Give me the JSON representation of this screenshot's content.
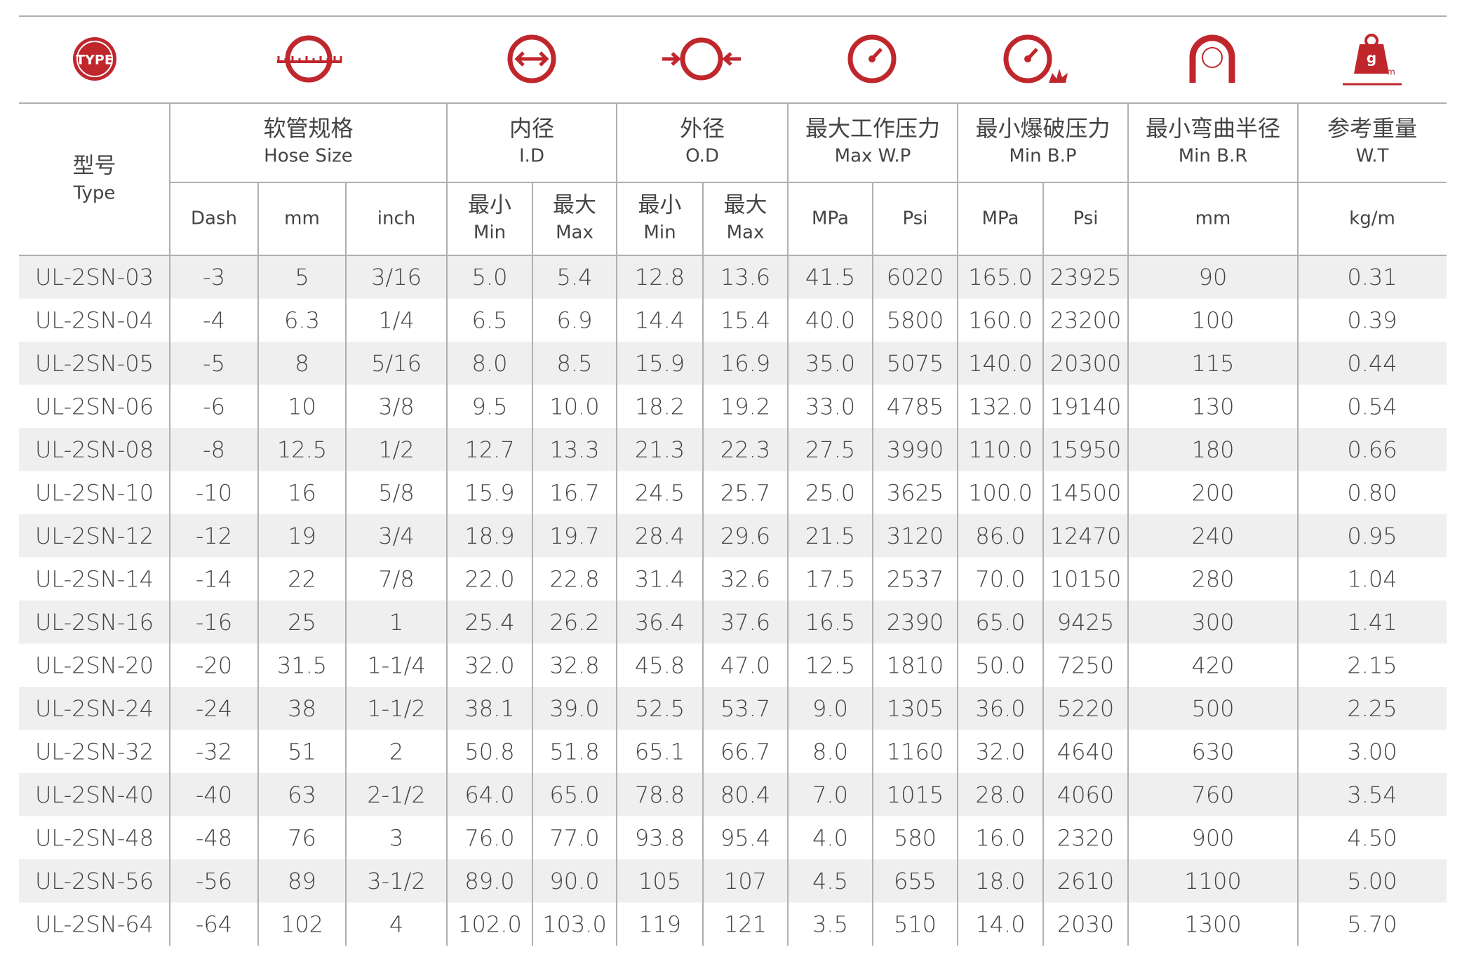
{
  "icons": {
    "type_label": "TYPE",
    "weight_label": "g",
    "weight_unit": "m"
  },
  "header": {
    "type_zh": "型号",
    "type_en": "Type",
    "groups": [
      {
        "zh": "软管规格",
        "en": "Hose Size"
      },
      {
        "zh": "内径",
        "en": "I.D"
      },
      {
        "zh": "外径",
        "en": "O.D"
      },
      {
        "zh": "最大工作压力",
        "en": "Max W.P"
      },
      {
        "zh": "最小爆破压力",
        "en": "Min B.P"
      },
      {
        "zh": "最小弯曲半径",
        "en": "Min B.R"
      },
      {
        "zh": "参考重量",
        "en": "W.T"
      }
    ],
    "units": [
      {
        "en": "Dash"
      },
      {
        "en": "mm"
      },
      {
        "en": "inch"
      },
      {
        "zh": "最小",
        "en": "Min"
      },
      {
        "zh": "最大",
        "en": "Max"
      },
      {
        "zh": "最小",
        "en": "Min"
      },
      {
        "zh": "最大",
        "en": "Max"
      },
      {
        "en": "MPa"
      },
      {
        "en": "Psi"
      },
      {
        "en": "MPa"
      },
      {
        "en": "Psi"
      },
      {
        "en": "mm"
      },
      {
        "en": "kg/m"
      }
    ]
  },
  "table": {
    "rows": [
      [
        "UL-2SN-03",
        "-3",
        "5",
        "3/16",
        "5.0",
        "5.4",
        "12.8",
        "13.6",
        "41.5",
        "6020",
        "165.0",
        "23925",
        "90",
        "0.31"
      ],
      [
        "UL-2SN-04",
        "-4",
        "6.3",
        "1/4",
        "6.5",
        "6.9",
        "14.4",
        "15.4",
        "40.0",
        "5800",
        "160.0",
        "23200",
        "100",
        "0.39"
      ],
      [
        "UL-2SN-05",
        "-5",
        "8",
        "5/16",
        "8.0",
        "8.5",
        "15.9",
        "16.9",
        "35.0",
        "5075",
        "140.0",
        "20300",
        "115",
        "0.44"
      ],
      [
        "UL-2SN-06",
        "-6",
        "10",
        "3/8",
        "9.5",
        "10.0",
        "18.2",
        "19.2",
        "33.0",
        "4785",
        "132.0",
        "19140",
        "130",
        "0.54"
      ],
      [
        "UL-2SN-08",
        "-8",
        "12.5",
        "1/2",
        "12.7",
        "13.3",
        "21.3",
        "22.3",
        "27.5",
        "3990",
        "110.0",
        "15950",
        "180",
        "0.66"
      ],
      [
        "UL-2SN-10",
        "-10",
        "16",
        "5/8",
        "15.9",
        "16.7",
        "24.5",
        "25.7",
        "25.0",
        "3625",
        "100.0",
        "14500",
        "200",
        "0.80"
      ],
      [
        "UL-2SN-12",
        "-12",
        "19",
        "3/4",
        "18.9",
        "19.7",
        "28.4",
        "29.6",
        "21.5",
        "3120",
        "86.0",
        "12470",
        "240",
        "0.95"
      ],
      [
        "UL-2SN-14",
        "-14",
        "22",
        "7/8",
        "22.0",
        "22.8",
        "31.4",
        "32.6",
        "17.5",
        "2537",
        "70.0",
        "10150",
        "280",
        "1.04"
      ],
      [
        "UL-2SN-16",
        "-16",
        "25",
        "1",
        "25.4",
        "26.2",
        "36.4",
        "37.6",
        "16.5",
        "2390",
        "65.0",
        "9425",
        "300",
        "1.41"
      ],
      [
        "UL-2SN-20",
        "-20",
        "31.5",
        "1-1/4",
        "32.0",
        "32.8",
        "45.8",
        "47.0",
        "12.5",
        "1810",
        "50.0",
        "7250",
        "420",
        "2.15"
      ],
      [
        "UL-2SN-24",
        "-24",
        "38",
        "1-1/2",
        "38.1",
        "39.0",
        "52.5",
        "53.7",
        "9.0",
        "1305",
        "36.0",
        "5220",
        "500",
        "2.25"
      ],
      [
        "UL-2SN-32",
        "-32",
        "51",
        "2",
        "50.8",
        "51.8",
        "65.1",
        "66.7",
        "8.0",
        "1160",
        "32.0",
        "4640",
        "630",
        "3.00"
      ],
      [
        "UL-2SN-40",
        "-40",
        "63",
        "2-1/2",
        "64.0",
        "65.0",
        "78.8",
        "80.4",
        "7.0",
        "1015",
        "28.0",
        "4060",
        "760",
        "3.54"
      ],
      [
        "UL-2SN-48",
        "-48",
        "76",
        "3",
        "76.0",
        "77.0",
        "93.8",
        "95.4",
        "4.0",
        "580",
        "16.0",
        "2320",
        "900",
        "4.50"
      ],
      [
        "UL-2SN-56",
        "-56",
        "89",
        "3-1/2",
        "89.0",
        "90.0",
        "105",
        "107",
        "4.5",
        "655",
        "18.0",
        "2610",
        "1100",
        "5.00"
      ],
      [
        "UL-2SN-64",
        "-64",
        "102",
        "4",
        "102.0",
        "103.0",
        "119",
        "121",
        "3.5",
        "510",
        "14.0",
        "2030",
        "1300",
        "5.70"
      ]
    ]
  }
}
